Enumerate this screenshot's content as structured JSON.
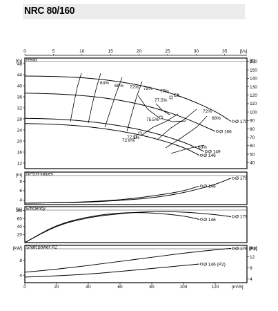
{
  "page": {
    "title": "NRC 80/160"
  },
  "chart_data": {
    "type": "line",
    "flow_axes": {
      "top": {
        "unit": "[l/s]",
        "ticks": [
          0,
          5,
          10,
          15,
          20,
          25,
          30,
          35
        ],
        "range": [
          0,
          38.9
        ]
      },
      "bottom": {
        "unit": "[m³/h]",
        "ticks": [
          0,
          20,
          40,
          60,
          80,
          100,
          120
        ],
        "range": [
          0,
          140
        ]
      }
    },
    "panels": [
      {
        "name": "head",
        "label": "Head",
        "left_unit": "[m]",
        "right_unit": "[ft]",
        "left_ticks": [
          12,
          16,
          20,
          24,
          28,
          32,
          36,
          40,
          44,
          48
        ],
        "right_ticks": [
          40,
          50,
          60,
          70,
          80,
          90,
          100,
          110,
          120,
          130,
          140,
          150,
          160
        ],
        "ylim": [
          10,
          50
        ],
        "series": [
          {
            "name": "Ø 179",
            "x": [
              0,
              20,
              40,
              60,
              80,
              100,
              120,
              130
            ],
            "y": [
              43.5,
              43.4,
              42.8,
              41.5,
              39.3,
              35.9,
              30.8,
              27.1
            ]
          },
          {
            "name": "Ø 166",
            "x": [
              0,
              20,
              40,
              60,
              80,
              100,
              120
            ],
            "y": [
              37.3,
              37.1,
              36.3,
              34.8,
              32.3,
              28.6,
              23.5
            ]
          },
          {
            "name": "Ø 149",
            "x": [
              0,
              20,
              40,
              60,
              80,
              100,
              113
            ],
            "y": [
              28.2,
              28.0,
              27.1,
              25.6,
              23.2,
              19.7,
              16.2
            ]
          },
          {
            "name": "Ø 146",
            "x": [
              0,
              20,
              40,
              60,
              80,
              100,
              110
            ],
            "y": [
              26.3,
              26.1,
              25.2,
              23.7,
              21.3,
              17.8,
              14.8
            ]
          }
        ],
        "efficiency_labels": [
          "63%",
          "68%",
          "72%",
          "75%",
          "77%",
          "Eff.",
          "77.5%",
          "75.5%",
          "72%",
          "68%",
          "63%",
          "72.6%",
          "77.1%"
        ]
      },
      {
        "name": "npsh",
        "label": "NPSH-values",
        "left_unit": "[m]",
        "left_ticks": [
          4,
          6,
          8
        ],
        "ylim": [
          3,
          10
        ],
        "series": [
          {
            "name": "Ø 179",
            "x": [
              0,
              20,
              40,
              60,
              80,
              100,
              120,
              130
            ],
            "y": [
              3.3,
              3.4,
              3.5,
              3.9,
              4.4,
              5.5,
              7.3,
              8.7
            ]
          },
          {
            "name": "Ø 146",
            "x": [
              0,
              20,
              40,
              60,
              80,
              100,
              110
            ],
            "y": [
              3.3,
              3.4,
              3.6,
              4.0,
              4.8,
              5.9,
              7.0
            ]
          }
        ]
      },
      {
        "name": "efficiency",
        "label": "Efficiency",
        "left_unit": "[%]",
        "left_ticks": [
          20,
          40,
          60,
          80
        ],
        "ylim": [
          0,
          90
        ],
        "series": [
          {
            "name": "Ø 179",
            "x": [
              0,
              20,
              40,
              60,
              80,
              100,
              120,
              130
            ],
            "y": [
              0,
              43,
              63,
              73,
              78,
              77,
              70,
              65
            ]
          },
          {
            "name": "Ø 146",
            "x": [
              0,
              20,
              40,
              60,
              80,
              100,
              110
            ],
            "y": [
              0,
              45,
              65,
              75,
              75,
              67,
              58
            ]
          }
        ]
      },
      {
        "name": "shaft_power",
        "label": "Shaft power P2",
        "left_unit": "[kW]",
        "right_unit": "[hp]",
        "left_ticks": [
          4,
          8
        ],
        "right_ticks": [
          4,
          8,
          12
        ],
        "ylim": [
          2,
          12
        ],
        "series": [
          {
            "name": "Ø 179 (P2)",
            "x": [
              0,
              20,
              40,
              60,
              80,
              100,
              120,
              130
            ],
            "y": [
              4.8,
              5.6,
              6.6,
              7.7,
              8.8,
              9.9,
              10.8,
              11.2
            ]
          },
          {
            "name": "Ø 146 (P2)",
            "x": [
              0,
              20,
              40,
              60,
              80,
              100,
              110
            ],
            "y": [
              3.5,
              3.8,
              4.3,
              5.0,
              5.8,
              6.6,
              7.0
            ]
          }
        ]
      }
    ],
    "grid": false
  }
}
